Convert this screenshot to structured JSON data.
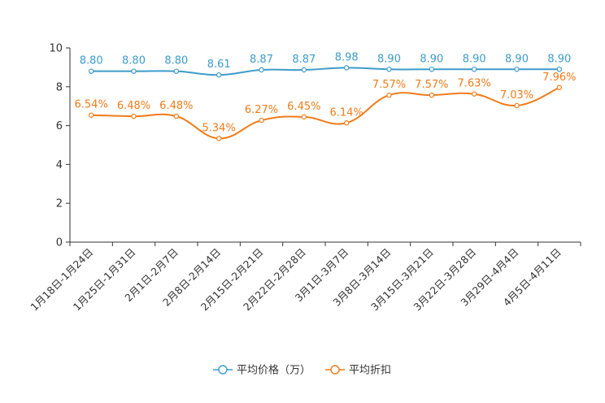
{
  "chart_data": {
    "type": "line",
    "title": "",
    "xlabel": "",
    "ylabel": "",
    "ylim": [
      0,
      10
    ],
    "yticks": [
      0,
      2,
      4,
      6,
      8,
      10
    ],
    "grid": false,
    "legend_position": "bottom",
    "categories": [
      "1月18日-1月24日",
      "1月25日-1月31日",
      "2月1日-2月7日",
      "2月8日-2月14日",
      "2月15日-2月21日",
      "2月22日-2月28日",
      "3月1日-3月7日",
      "3月8日-3月14日",
      "3月15日-3月21日",
      "3月22日-3月28日",
      "3月29日-4月4日",
      "4月5日-4月11日"
    ],
    "series": [
      {
        "name": "平均价格（万）",
        "color": "#3d9cc9",
        "values": [
          8.8,
          8.8,
          8.8,
          8.61,
          8.87,
          8.87,
          8.98,
          8.9,
          8.9,
          8.9,
          8.9,
          8.9
        ],
        "labels": [
          "8.80",
          "8.80",
          "8.80",
          "8.61",
          "8.87",
          "8.87",
          "8.98",
          "8.90",
          "8.90",
          "8.90",
          "8.90",
          "8.90"
        ]
      },
      {
        "name": "平均折扣",
        "color": "#f07c1a",
        "values": [
          6.54,
          6.48,
          6.48,
          5.34,
          6.27,
          6.45,
          6.14,
          7.57,
          7.57,
          7.63,
          7.03,
          7.96
        ],
        "labels": [
          "6.54%",
          "6.48%",
          "6.48%",
          "5.34%",
          "6.27%",
          "6.45%",
          "6.14%",
          "7.57%",
          "7.57%",
          "7.63%",
          "7.03%",
          "7.96%"
        ]
      }
    ]
  }
}
